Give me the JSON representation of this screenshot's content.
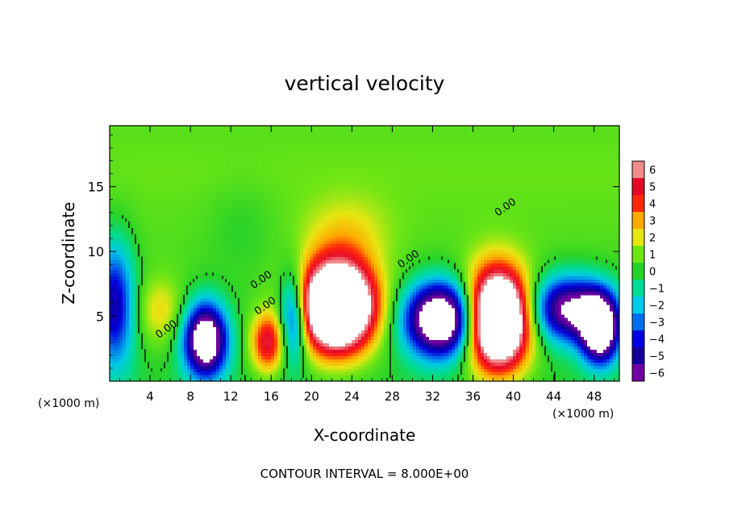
{
  "chart_data": {
    "type": "heatmap",
    "title": "vertical velocity",
    "xlabel": "X-coordinate",
    "ylabel": "Z-coordinate",
    "x_unit_left": "(×1000 m)",
    "x_unit_right": "(×1000 m)",
    "footer": "CONTOUR INTERVAL = 8.000E+00",
    "xlim": [
      0,
      50.5
    ],
    "ylim": [
      0,
      19.7
    ],
    "x_ticks": [
      4,
      8,
      12,
      16,
      20,
      24,
      28,
      32,
      36,
      40,
      44,
      48
    ],
    "y_ticks": [
      5,
      10,
      15
    ],
    "colorbar": {
      "ticks": [
        6,
        5,
        4,
        3,
        2,
        1,
        0,
        -1,
        -2,
        -3,
        -4,
        -5,
        -6
      ],
      "range": [
        -6,
        6
      ]
    },
    "contour_labels": [
      {
        "text": "0.00",
        "x": 5.8,
        "z": 3.8
      },
      {
        "text": "0.00",
        "x": 15.2,
        "z": 7.6
      },
      {
        "text": "0.00",
        "x": 15.6,
        "z": 5.6
      },
      {
        "text": "0.00",
        "x": 29.8,
        "z": 9.2
      },
      {
        "text": "0.00",
        "x": 39.4,
        "z": 13.2
      }
    ],
    "cells": [
      {
        "x": 22.5,
        "z": 5.8,
        "sx": 2.6,
        "sz": 2.4,
        "v": 14
      },
      {
        "x": 38.4,
        "z": 4.8,
        "sx": 2.2,
        "sz": 2.6,
        "v": 14
      },
      {
        "x": 15.7,
        "z": 3.0,
        "sx": 1.2,
        "sz": 1.6,
        "v": 5
      },
      {
        "x": 9.5,
        "z": 3.2,
        "sx": 1.5,
        "sz": 2.0,
        "v": -9
      },
      {
        "x": 33.0,
        "z": 4.8,
        "sx": 2.6,
        "sz": 2.0,
        "v": -10
      },
      {
        "x": 18.2,
        "z": 5.0,
        "sx": 1.0,
        "sz": 2.4,
        "v": -6
      },
      {
        "x": 45.5,
        "z": 5.6,
        "sx": 2.8,
        "sz": 1.8,
        "v": -7
      },
      {
        "x": 48.6,
        "z": 4.0,
        "sx": 1.3,
        "sz": 1.8,
        "v": -9
      },
      {
        "x": 0.5,
        "z": 6.0,
        "sx": 1.4,
        "sz": 3.5,
        "v": -5
      },
      {
        "x": 5.0,
        "z": 5.4,
        "sx": 1.6,
        "sz": 1.8,
        "v": 2
      },
      {
        "x": 23.5,
        "z": 11.5,
        "sx": 3.0,
        "sz": 2.0,
        "v": 1.5
      },
      {
        "x": 13.0,
        "z": 12.0,
        "sx": 2.5,
        "sz": 2.5,
        "v": -0.6
      }
    ]
  }
}
